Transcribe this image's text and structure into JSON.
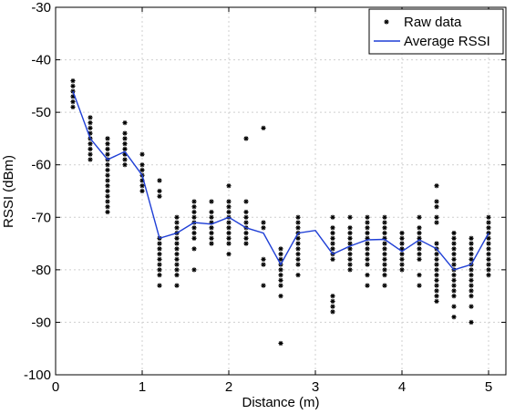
{
  "chart_data": {
    "type": "scatter",
    "xlabel": "Distance (m)",
    "ylabel": "RSSI (dBm)",
    "xlim": [
      0,
      5.2
    ],
    "ylim": [
      -100,
      -30
    ],
    "xticks": [
      0,
      1,
      2,
      3,
      4,
      5
    ],
    "xtick_labels": [
      "0",
      "1",
      "2",
      "3",
      "4",
      "5"
    ],
    "yticks": [
      -100,
      -90,
      -80,
      -70,
      -60,
      -50,
      -40,
      -30
    ],
    "ytick_labels": [
      "-100",
      "-90",
      "-80",
      "-70",
      "-60",
      "-50",
      "-40",
      "-30"
    ],
    "grid": true,
    "legend": {
      "position": "top-right",
      "entries": [
        "Raw data",
        "Average RSSI"
      ]
    },
    "series": [
      {
        "name": "Raw data",
        "kind": "scatter",
        "marker": "star",
        "color": "#000000",
        "points": [
          [
            0.2,
            -44
          ],
          [
            0.2,
            -45
          ],
          [
            0.2,
            -46
          ],
          [
            0.2,
            -47
          ],
          [
            0.2,
            -48
          ],
          [
            0.2,
            -49
          ],
          [
            0.4,
            -51
          ],
          [
            0.4,
            -52
          ],
          [
            0.4,
            -53
          ],
          [
            0.4,
            -54
          ],
          [
            0.4,
            -55
          ],
          [
            0.4,
            -56
          ],
          [
            0.4,
            -57
          ],
          [
            0.4,
            -58
          ],
          [
            0.4,
            -59
          ],
          [
            0.6,
            -55
          ],
          [
            0.6,
            -56
          ],
          [
            0.6,
            -57
          ],
          [
            0.6,
            -58
          ],
          [
            0.6,
            -59
          ],
          [
            0.6,
            -60
          ],
          [
            0.6,
            -61
          ],
          [
            0.6,
            -62
          ],
          [
            0.6,
            -63
          ],
          [
            0.6,
            -64
          ],
          [
            0.6,
            -65
          ],
          [
            0.6,
            -66
          ],
          [
            0.6,
            -67
          ],
          [
            0.6,
            -68
          ],
          [
            0.6,
            -69
          ],
          [
            0.8,
            -52
          ],
          [
            0.8,
            -54
          ],
          [
            0.8,
            -55
          ],
          [
            0.8,
            -56
          ],
          [
            0.8,
            -57
          ],
          [
            0.8,
            -58
          ],
          [
            0.8,
            -59
          ],
          [
            0.8,
            -60
          ],
          [
            1.0,
            -58
          ],
          [
            1.0,
            -60
          ],
          [
            1.0,
            -61
          ],
          [
            1.0,
            -62
          ],
          [
            1.0,
            -63
          ],
          [
            1.0,
            -64
          ],
          [
            1.0,
            -65
          ],
          [
            1.2,
            -63
          ],
          [
            1.2,
            -65
          ],
          [
            1.2,
            -66
          ],
          [
            1.2,
            -74
          ],
          [
            1.2,
            -75
          ],
          [
            1.2,
            -76
          ],
          [
            1.2,
            -77
          ],
          [
            1.2,
            -78
          ],
          [
            1.2,
            -79
          ],
          [
            1.2,
            -80
          ],
          [
            1.2,
            -81
          ],
          [
            1.2,
            -83
          ],
          [
            1.4,
            -70
          ],
          [
            1.4,
            -71
          ],
          [
            1.4,
            -72
          ],
          [
            1.4,
            -73
          ],
          [
            1.4,
            -74
          ],
          [
            1.4,
            -75
          ],
          [
            1.4,
            -76
          ],
          [
            1.4,
            -77
          ],
          [
            1.4,
            -78
          ],
          [
            1.4,
            -79
          ],
          [
            1.4,
            -80
          ],
          [
            1.4,
            -81
          ],
          [
            1.4,
            -83
          ],
          [
            1.6,
            -67
          ],
          [
            1.6,
            -68
          ],
          [
            1.6,
            -69
          ],
          [
            1.6,
            -70
          ],
          [
            1.6,
            -71
          ],
          [
            1.6,
            -72
          ],
          [
            1.6,
            -73
          ],
          [
            1.6,
            -74
          ],
          [
            1.6,
            -76
          ],
          [
            1.6,
            -80
          ],
          [
            1.8,
            -67
          ],
          [
            1.8,
            -69
          ],
          [
            1.8,
            -70
          ],
          [
            1.8,
            -71
          ],
          [
            1.8,
            -72
          ],
          [
            1.8,
            -73
          ],
          [
            1.8,
            -74
          ],
          [
            1.8,
            -75
          ],
          [
            2.0,
            -64
          ],
          [
            2.0,
            -67
          ],
          [
            2.0,
            -68
          ],
          [
            2.0,
            -69
          ],
          [
            2.0,
            -70
          ],
          [
            2.0,
            -71
          ],
          [
            2.0,
            -72
          ],
          [
            2.0,
            -73
          ],
          [
            2.0,
            -74
          ],
          [
            2.0,
            -75
          ],
          [
            2.0,
            -77
          ],
          [
            2.2,
            -55
          ],
          [
            2.2,
            -67
          ],
          [
            2.2,
            -69
          ],
          [
            2.2,
            -70
          ],
          [
            2.2,
            -71
          ],
          [
            2.2,
            -72
          ],
          [
            2.2,
            -73
          ],
          [
            2.2,
            -74
          ],
          [
            2.2,
            -75
          ],
          [
            2.4,
            -53
          ],
          [
            2.4,
            -71
          ],
          [
            2.4,
            -72
          ],
          [
            2.4,
            -78
          ],
          [
            2.4,
            -79
          ],
          [
            2.4,
            -83
          ],
          [
            2.6,
            -76
          ],
          [
            2.6,
            -77
          ],
          [
            2.6,
            -78
          ],
          [
            2.6,
            -79
          ],
          [
            2.6,
            -80
          ],
          [
            2.6,
            -81
          ],
          [
            2.6,
            -82
          ],
          [
            2.6,
            -83
          ],
          [
            2.6,
            -85
          ],
          [
            2.6,
            -94
          ],
          [
            2.8,
            -70
          ],
          [
            2.8,
            -71
          ],
          [
            2.8,
            -72
          ],
          [
            2.8,
            -73
          ],
          [
            2.8,
            -74
          ],
          [
            2.8,
            -75
          ],
          [
            2.8,
            -76
          ],
          [
            2.8,
            -77
          ],
          [
            2.8,
            -78
          ],
          [
            2.8,
            -79
          ],
          [
            2.8,
            -81
          ],
          [
            3.2,
            -70
          ],
          [
            3.2,
            -72
          ],
          [
            3.2,
            -73
          ],
          [
            3.2,
            -74
          ],
          [
            3.2,
            -75
          ],
          [
            3.2,
            -76
          ],
          [
            3.2,
            -77
          ],
          [
            3.2,
            -78
          ],
          [
            3.2,
            -85
          ],
          [
            3.2,
            -86
          ],
          [
            3.2,
            -87
          ],
          [
            3.2,
            -88
          ],
          [
            3.4,
            -70
          ],
          [
            3.4,
            -72
          ],
          [
            3.4,
            -73
          ],
          [
            3.4,
            -74
          ],
          [
            3.4,
            -75
          ],
          [
            3.4,
            -76
          ],
          [
            3.4,
            -77
          ],
          [
            3.4,
            -78
          ],
          [
            3.4,
            -79
          ],
          [
            3.4,
            -80
          ],
          [
            3.6,
            -70
          ],
          [
            3.6,
            -71
          ],
          [
            3.6,
            -72
          ],
          [
            3.6,
            -73
          ],
          [
            3.6,
            -74
          ],
          [
            3.6,
            -75
          ],
          [
            3.6,
            -76
          ],
          [
            3.6,
            -77
          ],
          [
            3.6,
            -78
          ],
          [
            3.6,
            -79
          ],
          [
            3.6,
            -81
          ],
          [
            3.6,
            -83
          ],
          [
            3.8,
            -70
          ],
          [
            3.8,
            -71
          ],
          [
            3.8,
            -72
          ],
          [
            3.8,
            -73
          ],
          [
            3.8,
            -74
          ],
          [
            3.8,
            -75
          ],
          [
            3.8,
            -76
          ],
          [
            3.8,
            -77
          ],
          [
            3.8,
            -78
          ],
          [
            3.8,
            -79
          ],
          [
            3.8,
            -80
          ],
          [
            3.8,
            -81
          ],
          [
            3.8,
            -83
          ],
          [
            4.0,
            -73
          ],
          [
            4.0,
            -74
          ],
          [
            4.0,
            -75
          ],
          [
            4.0,
            -76
          ],
          [
            4.0,
            -77
          ],
          [
            4.0,
            -78
          ],
          [
            4.0,
            -79
          ],
          [
            4.0,
            -80
          ],
          [
            4.2,
            -70
          ],
          [
            4.2,
            -72
          ],
          [
            4.2,
            -73
          ],
          [
            4.2,
            -74
          ],
          [
            4.2,
            -75
          ],
          [
            4.2,
            -76
          ],
          [
            4.2,
            -77
          ],
          [
            4.2,
            -78
          ],
          [
            4.2,
            -81
          ],
          [
            4.2,
            -83
          ],
          [
            4.4,
            -64
          ],
          [
            4.4,
            -67
          ],
          [
            4.4,
            -68
          ],
          [
            4.4,
            -70
          ],
          [
            4.4,
            -71
          ],
          [
            4.4,
            -75
          ],
          [
            4.4,
            -76
          ],
          [
            4.4,
            -77
          ],
          [
            4.4,
            -78
          ],
          [
            4.4,
            -79
          ],
          [
            4.4,
            -80
          ],
          [
            4.4,
            -81
          ],
          [
            4.4,
            -82
          ],
          [
            4.4,
            -83
          ],
          [
            4.4,
            -84
          ],
          [
            4.4,
            -85
          ],
          [
            4.4,
            -86
          ],
          [
            4.6,
            -73
          ],
          [
            4.6,
            -74
          ],
          [
            4.6,
            -75
          ],
          [
            4.6,
            -76
          ],
          [
            4.6,
            -77
          ],
          [
            4.6,
            -78
          ],
          [
            4.6,
            -79
          ],
          [
            4.6,
            -80
          ],
          [
            4.6,
            -81
          ],
          [
            4.6,
            -82
          ],
          [
            4.6,
            -83
          ],
          [
            4.6,
            -84
          ],
          [
            4.6,
            -85
          ],
          [
            4.6,
            -87
          ],
          [
            4.6,
            -89
          ],
          [
            4.8,
            -74
          ],
          [
            4.8,
            -75
          ],
          [
            4.8,
            -76
          ],
          [
            4.8,
            -77
          ],
          [
            4.8,
            -78
          ],
          [
            4.8,
            -79
          ],
          [
            4.8,
            -80
          ],
          [
            4.8,
            -81
          ],
          [
            4.8,
            -82
          ],
          [
            4.8,
            -83
          ],
          [
            4.8,
            -84
          ],
          [
            4.8,
            -85
          ],
          [
            4.8,
            -87
          ],
          [
            4.8,
            -90
          ],
          [
            5.0,
            -70
          ],
          [
            5.0,
            -71
          ],
          [
            5.0,
            -72
          ],
          [
            5.0,
            -73
          ],
          [
            5.0,
            -74
          ],
          [
            5.0,
            -75
          ],
          [
            5.0,
            -76
          ],
          [
            5.0,
            -77
          ],
          [
            5.0,
            -78
          ],
          [
            5.0,
            -79
          ],
          [
            5.0,
            -80
          ],
          [
            5.0,
            -81
          ]
        ]
      },
      {
        "name": "Average RSSI",
        "kind": "line",
        "color": "#1f3fd6",
        "x": [
          0.2,
          0.4,
          0.6,
          0.8,
          1.0,
          1.2,
          1.4,
          1.6,
          1.8,
          2.0,
          2.2,
          2.4,
          2.6,
          2.8,
          3.0,
          3.2,
          3.4,
          3.6,
          3.8,
          4.0,
          4.2,
          4.4,
          4.6,
          4.8,
          5.0
        ],
        "y": [
          -46,
          -55,
          -59,
          -57.5,
          -62,
          -74,
          -73,
          -71,
          -71.3,
          -70,
          -72,
          -73,
          -79,
          -73,
          -72.5,
          -77,
          -75.5,
          -74.3,
          -74.2,
          -76.5,
          -74.3,
          -76,
          -80,
          -79,
          -73
        ]
      }
    ]
  }
}
